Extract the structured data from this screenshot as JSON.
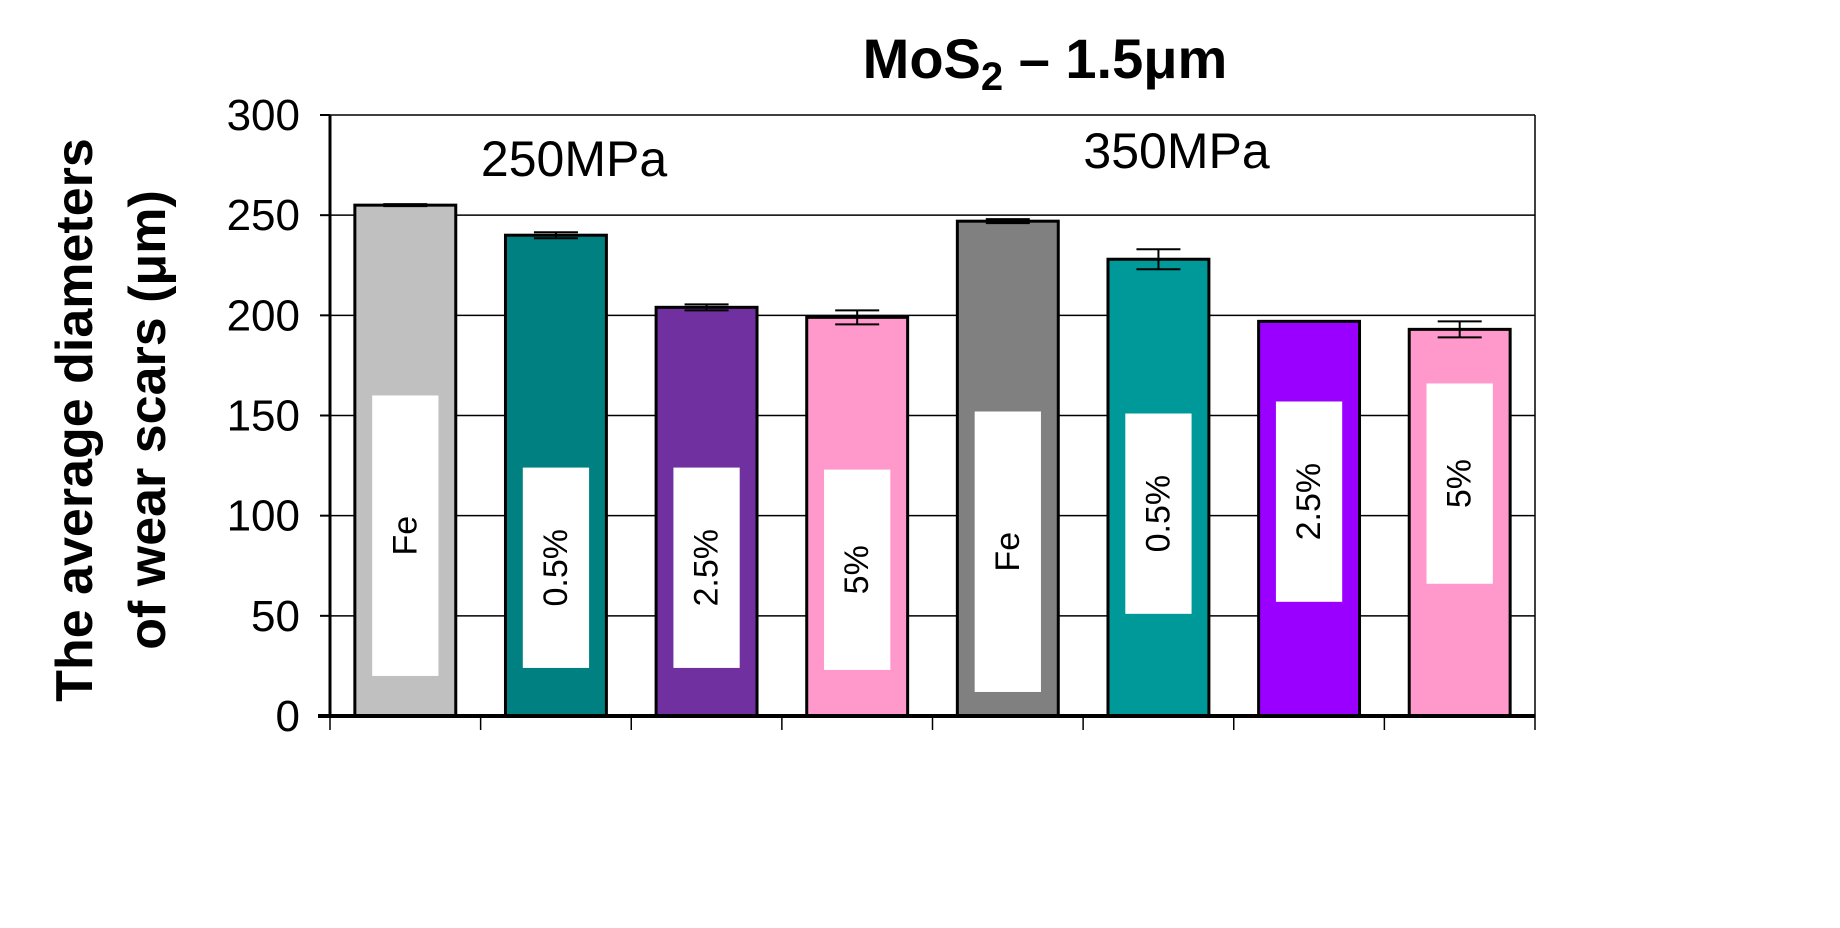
{
  "chart_data": {
    "type": "bar",
    "title": "MoS",
    "title_sub": "2",
    "title_suffix": " – 1.5μm",
    "ylabel_line1": "The average diameters",
    "ylabel_line2": "of wear scars (μm)",
    "xlabel": "",
    "ylim": [
      0,
      300
    ],
    "yticks": [
      0,
      50,
      100,
      150,
      200,
      250,
      300
    ],
    "grid": true,
    "groups": [
      {
        "label": "250MPa"
      },
      {
        "label": "350MPa"
      }
    ],
    "bars": [
      {
        "label": "Fe",
        "group": "250MPa",
        "value": 255,
        "error": 0.5,
        "color": "#c0c0c0",
        "label_box": [
          20,
          160
        ]
      },
      {
        "label": "0.5%",
        "group": "250MPa",
        "value": 240,
        "error": 1.5,
        "color": "#008080",
        "label_box": [
          24,
          124
        ]
      },
      {
        "label": "2.5%",
        "group": "250MPa",
        "value": 204,
        "error": 1.5,
        "color": "#7030a0",
        "label_box": [
          24,
          124
        ]
      },
      {
        "label": "5%",
        "group": "250MPa",
        "value": 199,
        "error": 3.5,
        "color": "#ff99cc",
        "label_box": [
          23,
          123
        ]
      },
      {
        "label": "Fe",
        "group": "350MPa",
        "value": 247,
        "error": 1.0,
        "color": "#808080",
        "label_box": [
          12,
          152
        ]
      },
      {
        "label": "0.5%",
        "group": "350MPa",
        "value": 228,
        "error": 5.0,
        "color": "#009999",
        "label_box": [
          51,
          151
        ]
      },
      {
        "label": "2.5%",
        "group": "350MPa",
        "value": 197,
        "error": 0.0,
        "color": "#9900ff",
        "label_box": [
          57,
          157
        ]
      },
      {
        "label": "5%",
        "group": "350MPa",
        "value": 193,
        "error": 4.0,
        "color": "#ff99cc",
        "label_box": [
          66,
          166
        ]
      }
    ]
  }
}
